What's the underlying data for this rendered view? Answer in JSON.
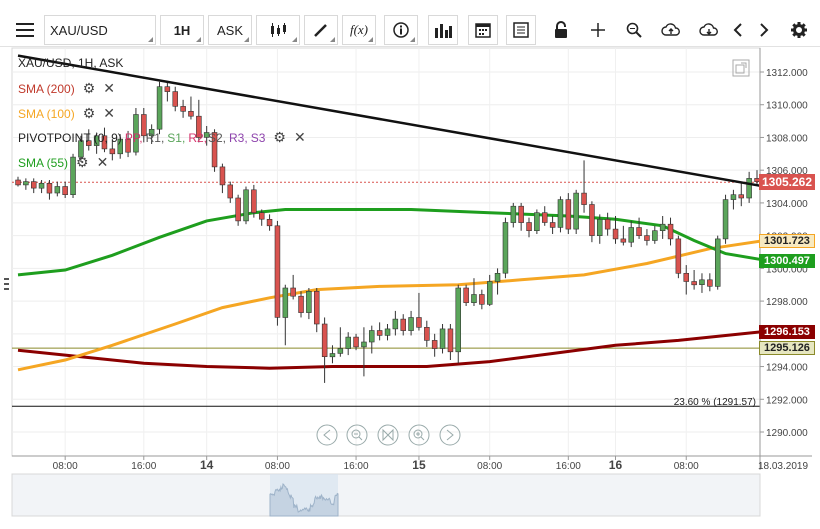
{
  "toolbar": {
    "symbol": "XAU/USD",
    "interval": "1H",
    "price_type": "ASK"
  },
  "legend": {
    "title": "XAU/USD, 1H, ASK",
    "sma200": "SMA (200)",
    "sma100": "SMA (100)",
    "pivot_prefix": "PIVOTPOINT (0, 9)",
    "pivot_pp": "PP,",
    "pivot_r1": "R1,",
    "pivot_s1": "S1,",
    "pivot_r2": "R2,",
    "pivot_s2": "S2,",
    "pivot_r3": "R3,",
    "pivot_s3": "S3",
    "sma55": "SMA (55)"
  },
  "price_tags": {
    "current": "1305.262",
    "sma100": "1301.723",
    "sma55": "1300.497",
    "sma200": "1296.153",
    "level": "1295.126"
  },
  "fib_label": "23.60 % (1291.57)",
  "colors": {
    "bull": "#5ba55b",
    "bear": "#d9534f",
    "sma55": "#1e9e1e",
    "sma100": "#f5a623",
    "sma200": "#8b0000",
    "trendline": "#111111",
    "level_line": "#8a8a2a"
  },
  "chart_data": {
    "type": "candlestick",
    "ylim": [
      1289.0,
      1313.0
    ],
    "yticks": [
      "1312.000",
      "1310.000",
      "1308.000",
      "1306.000",
      "1304.000",
      "1302.000",
      "1300.000",
      "1298.000",
      "1296.000",
      "1294.000",
      "1292.000",
      "1290.000"
    ],
    "ytick_values": [
      1312,
      1310,
      1308,
      1306,
      1304,
      1302,
      1300,
      1298,
      1296,
      1294,
      1292,
      1290
    ],
    "xticks": [
      "08:00",
      "16:00",
      "14",
      "08:00",
      "16:00",
      "15",
      "08:00",
      "16:00",
      "16",
      "08:00",
      "18.03.2019"
    ],
    "xtick_index": [
      6,
      16,
      24,
      33,
      43,
      51,
      60,
      70,
      76,
      85,
      94
    ],
    "candles": [
      [
        1305.4,
        1305.6,
        1305.0,
        1305.1
      ],
      [
        1305.1,
        1305.5,
        1304.8,
        1305.3
      ],
      [
        1305.3,
        1305.5,
        1304.6,
        1304.9
      ],
      [
        1304.9,
        1305.4,
        1304.6,
        1305.2
      ],
      [
        1305.2,
        1305.4,
        1304.2,
        1304.6
      ],
      [
        1304.6,
        1305.3,
        1304.4,
        1305.0
      ],
      [
        1305.0,
        1305.3,
        1304.3,
        1304.5
      ],
      [
        1304.5,
        1307.0,
        1304.3,
        1306.8
      ],
      [
        1306.8,
        1308.1,
        1306.5,
        1307.8
      ],
      [
        1307.8,
        1308.5,
        1307.2,
        1307.5
      ],
      [
        1307.5,
        1308.3,
        1307.0,
        1308.1
      ],
      [
        1308.1,
        1308.6,
        1307.1,
        1307.3
      ],
      [
        1307.3,
        1307.9,
        1306.6,
        1307.0
      ],
      [
        1307.0,
        1308.2,
        1306.7,
        1307.9
      ],
      [
        1307.9,
        1308.4,
        1306.8,
        1307.1
      ],
      [
        1307.1,
        1309.8,
        1306.9,
        1309.4
      ],
      [
        1309.4,
        1309.8,
        1307.7,
        1308.1
      ],
      [
        1308.1,
        1308.8,
        1307.6,
        1308.5
      ],
      [
        1308.5,
        1311.4,
        1308.2,
        1311.1
      ],
      [
        1311.1,
        1311.4,
        1310.2,
        1310.8
      ],
      [
        1310.8,
        1311.1,
        1309.6,
        1309.9
      ],
      [
        1309.9,
        1310.3,
        1309.2,
        1309.6
      ],
      [
        1309.6,
        1310.5,
        1309.1,
        1309.3
      ],
      [
        1309.3,
        1310.3,
        1307.7,
        1308.0
      ],
      [
        1308.0,
        1308.7,
        1307.5,
        1308.3
      ],
      [
        1308.3,
        1308.5,
        1305.9,
        1306.2
      ],
      [
        1306.2,
        1306.4,
        1304.6,
        1305.1
      ],
      [
        1305.1,
        1305.3,
        1304.0,
        1304.3
      ],
      [
        1304.3,
        1304.5,
        1302.6,
        1302.9
      ],
      [
        1302.9,
        1305.0,
        1302.7,
        1304.8
      ],
      [
        1304.8,
        1305.1,
        1303.1,
        1303.4
      ],
      [
        1303.4,
        1303.6,
        1302.6,
        1303.0
      ],
      [
        1303.0,
        1303.3,
        1302.3,
        1302.6
      ],
      [
        1302.6,
        1302.9,
        1296.5,
        1297.0
      ],
      [
        1297.0,
        1299.0,
        1295.3,
        1298.8
      ],
      [
        1298.8,
        1299.6,
        1298.1,
        1298.3
      ],
      [
        1298.3,
        1298.6,
        1297.0,
        1297.3
      ],
      [
        1297.3,
        1298.8,
        1296.9,
        1298.6
      ],
      [
        1298.6,
        1298.8,
        1296.1,
        1296.6
      ],
      [
        1296.6,
        1297.0,
        1293.0,
        1294.6
      ],
      [
        1294.6,
        1295.3,
        1294.2,
        1294.8
      ],
      [
        1294.8,
        1296.4,
        1294.6,
        1295.1
      ],
      [
        1295.1,
        1296.1,
        1294.7,
        1295.8
      ],
      [
        1295.8,
        1296.0,
        1295.0,
        1295.2
      ],
      [
        1295.2,
        1296.4,
        1293.4,
        1295.5
      ],
      [
        1295.5,
        1296.5,
        1294.8,
        1296.2
      ],
      [
        1296.2,
        1296.7,
        1295.6,
        1295.9
      ],
      [
        1295.9,
        1296.6,
        1295.6,
        1296.3
      ],
      [
        1296.3,
        1297.4,
        1295.9,
        1296.9
      ],
      [
        1296.9,
        1297.2,
        1295.9,
        1296.2
      ],
      [
        1296.2,
        1297.4,
        1295.9,
        1297.0
      ],
      [
        1297.0,
        1298.5,
        1296.2,
        1296.4
      ],
      [
        1296.4,
        1296.8,
        1295.2,
        1295.6
      ],
      [
        1295.6,
        1296.0,
        1294.6,
        1295.1
      ],
      [
        1295.1,
        1296.6,
        1294.8,
        1296.3
      ],
      [
        1296.3,
        1296.6,
        1294.4,
        1294.9
      ],
      [
        1294.9,
        1299.0,
        1294.2,
        1298.8
      ],
      [
        1298.8,
        1299.0,
        1297.7,
        1297.9
      ],
      [
        1297.9,
        1299.4,
        1297.7,
        1298.4
      ],
      [
        1298.4,
        1298.7,
        1297.5,
        1297.8
      ],
      [
        1297.8,
        1299.6,
        1297.7,
        1299.2
      ],
      [
        1299.2,
        1300.0,
        1298.4,
        1299.7
      ],
      [
        1299.7,
        1303.1,
        1299.4,
        1302.8
      ],
      [
        1302.8,
        1304.0,
        1302.5,
        1303.8
      ],
      [
        1303.8,
        1304.0,
        1302.3,
        1302.8
      ],
      [
        1302.8,
        1303.1,
        1301.9,
        1302.3
      ],
      [
        1302.3,
        1303.6,
        1302.1,
        1303.4
      ],
      [
        1303.4,
        1303.8,
        1302.6,
        1302.8
      ],
      [
        1302.8,
        1303.2,
        1302.1,
        1302.5
      ],
      [
        1302.5,
        1304.4,
        1302.2,
        1304.2
      ],
      [
        1304.2,
        1304.6,
        1302.1,
        1302.4
      ],
      [
        1302.4,
        1304.8,
        1302.1,
        1304.6
      ],
      [
        1304.6,
        1306.6,
        1303.4,
        1303.9
      ],
      [
        1303.9,
        1304.1,
        1301.6,
        1302.0
      ],
      [
        1302.0,
        1303.3,
        1301.5,
        1303.0
      ],
      [
        1303.0,
        1303.4,
        1302.0,
        1302.4
      ],
      [
        1302.4,
        1303.2,
        1301.5,
        1301.8
      ],
      [
        1301.8,
        1302.6,
        1301.4,
        1301.6
      ],
      [
        1301.6,
        1302.9,
        1301.3,
        1302.5
      ],
      [
        1302.5,
        1303.1,
        1301.8,
        1302.0
      ],
      [
        1302.0,
        1302.4,
        1301.4,
        1301.7
      ],
      [
        1301.7,
        1302.6,
        1301.5,
        1302.3
      ],
      [
        1302.3,
        1303.2,
        1301.8,
        1302.7
      ],
      [
        1302.7,
        1303.1,
        1301.4,
        1301.8
      ],
      [
        1301.8,
        1302.0,
        1299.4,
        1299.7
      ],
      [
        1299.7,
        1300.2,
        1298.4,
        1299.2
      ],
      [
        1299.2,
        1299.9,
        1298.7,
        1299.0
      ],
      [
        1299.0,
        1299.7,
        1298.5,
        1299.3
      ],
      [
        1299.3,
        1299.7,
        1298.6,
        1298.9
      ],
      [
        1298.9,
        1302.0,
        1298.7,
        1301.8
      ],
      [
        1301.8,
        1304.5,
        1301.5,
        1304.2
      ],
      [
        1304.2,
        1304.8,
        1303.6,
        1304.5
      ],
      [
        1304.5,
        1305.2,
        1303.8,
        1304.3
      ],
      [
        1304.3,
        1305.9,
        1304.0,
        1305.5
      ],
      [
        1305.5,
        1306.0,
        1305.1,
        1305.3
      ]
    ],
    "sma55": [
      [
        0,
        1299.6
      ],
      [
        6,
        1299.9
      ],
      [
        12,
        1300.8
      ],
      [
        18,
        1301.9
      ],
      [
        24,
        1302.9
      ],
      [
        30,
        1303.4
      ],
      [
        34,
        1303.6
      ],
      [
        42,
        1303.6
      ],
      [
        50,
        1303.6
      ],
      [
        60,
        1303.4
      ],
      [
        70,
        1303.2
      ],
      [
        76,
        1303.0
      ],
      [
        82,
        1302.6
      ],
      [
        86,
        1301.7
      ],
      [
        90,
        1300.9
      ],
      [
        95,
        1300.5
      ]
    ],
    "sma100": [
      [
        0,
        1293.8
      ],
      [
        6,
        1294.4
      ],
      [
        12,
        1295.3
      ],
      [
        20,
        1296.6
      ],
      [
        26,
        1297.6
      ],
      [
        32,
        1298.2
      ],
      [
        38,
        1298.7
      ],
      [
        46,
        1298.9
      ],
      [
        56,
        1299.0
      ],
      [
        64,
        1299.3
      ],
      [
        72,
        1299.6
      ],
      [
        80,
        1300.3
      ],
      [
        88,
        1301.2
      ],
      [
        95,
        1301.7
      ]
    ],
    "sma200": [
      [
        0,
        1295.0
      ],
      [
        8,
        1294.6
      ],
      [
        16,
        1294.2
      ],
      [
        24,
        1294.0
      ],
      [
        32,
        1293.9
      ],
      [
        40,
        1294.0
      ],
      [
        52,
        1294.0
      ],
      [
        60,
        1294.3
      ],
      [
        68,
        1294.8
      ],
      [
        76,
        1295.3
      ],
      [
        84,
        1295.6
      ],
      [
        90,
        1295.9
      ],
      [
        95,
        1296.15
      ]
    ],
    "trendline": [
      [
        0,
        1313.0
      ],
      [
        95,
        1305.0
      ]
    ],
    "horizontal_levels": [
      1295.126,
      1291.57,
      1305.262
    ]
  }
}
